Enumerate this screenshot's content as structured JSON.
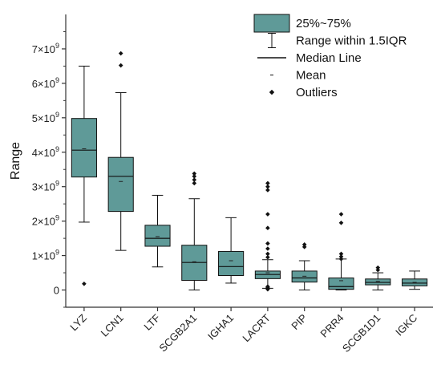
{
  "chart_data": {
    "type": "box",
    "title": "",
    "xlabel": "",
    "ylabel": "Range",
    "ylim": [
      -0.5,
      8.0
    ],
    "y_multiplier": "×10^9",
    "y_ticks": [
      {
        "value": 0,
        "label": "0"
      },
      {
        "value": 1,
        "label": "1×10",
        "exp": "9"
      },
      {
        "value": 2,
        "label": "2×10",
        "exp": "9"
      },
      {
        "value": 3,
        "label": "3×10",
        "exp": "9"
      },
      {
        "value": 4,
        "label": "4×10",
        "exp": "9"
      },
      {
        "value": 5,
        "label": "5×10",
        "exp": "9"
      },
      {
        "value": 6,
        "label": "6×10",
        "exp": "9"
      },
      {
        "value": 7,
        "label": "7×10",
        "exp": "9"
      }
    ],
    "box_color": "#5f9a98",
    "box_stroke": "#111111",
    "categories": [
      "LYZ",
      "LCN1",
      "LTF",
      "SCGB2A1",
      "IGHA1",
      "LACRT",
      "PIP",
      "PRR4",
      "SCGB1D1",
      "IGKC"
    ],
    "boxes": [
      {
        "name": "LYZ",
        "whisker_low": 1.97,
        "q1": 3.28,
        "median": 4.06,
        "mean": 4.1,
        "q3": 4.98,
        "whisker_high": 6.5,
        "outliers": [
          0.18
        ]
      },
      {
        "name": "LCN1",
        "whisker_low": 1.15,
        "q1": 2.28,
        "median": 3.3,
        "mean": 3.15,
        "q3": 3.85,
        "whisker_high": 5.73,
        "outliers": [
          6.52,
          6.87
        ]
      },
      {
        "name": "LTF",
        "whisker_low": 0.67,
        "q1": 1.27,
        "median": 1.5,
        "mean": 1.55,
        "q3": 1.88,
        "whisker_high": 2.75,
        "outliers": []
      },
      {
        "name": "SCGB2A1",
        "whisker_low": 0.0,
        "q1": 0.28,
        "median": 0.8,
        "mean": 0.82,
        "q3": 1.3,
        "whisker_high": 2.65,
        "outliers": [
          3.1,
          3.2,
          3.3,
          3.38
        ]
      },
      {
        "name": "IGHA1",
        "whisker_low": 0.2,
        "q1": 0.42,
        "median": 0.68,
        "mean": 0.85,
        "q3": 1.12,
        "whisker_high": 2.1,
        "outliers": []
      },
      {
        "name": "LACRT",
        "whisker_low": 0.05,
        "q1": 0.33,
        "median": 0.45,
        "mean": 0.5,
        "q3": 0.55,
        "whisker_high": 0.88,
        "outliers": [
          0.02,
          0.05,
          0.08,
          0.1,
          0.95,
          1.05,
          1.2,
          1.35,
          1.8,
          2.2,
          2.9,
          3.0,
          3.1
        ]
      },
      {
        "name": "PIP",
        "whisker_low": 0.0,
        "q1": 0.23,
        "median": 0.35,
        "mean": 0.4,
        "q3": 0.55,
        "whisker_high": 0.85,
        "outliers": [
          1.25,
          1.32
        ]
      },
      {
        "name": "PRR4",
        "whisker_low": 0.0,
        "q1": 0.02,
        "median": 0.1,
        "mean": 0.27,
        "q3": 0.35,
        "whisker_high": 0.9,
        "outliers": [
          0.9,
          0.97,
          1.05,
          1.95,
          2.2
        ]
      },
      {
        "name": "SCGB1D1",
        "whisker_low": 0.0,
        "q1": 0.15,
        "median": 0.22,
        "mean": 0.25,
        "q3": 0.32,
        "whisker_high": 0.5,
        "outliers": [
          0.58,
          0.65
        ]
      },
      {
        "name": "IGKC",
        "whisker_low": 0.02,
        "q1": 0.12,
        "median": 0.2,
        "mean": 0.22,
        "q3": 0.32,
        "whisker_high": 0.55,
        "outliers": []
      }
    ],
    "legend": {
      "placement": "top-right",
      "items": [
        {
          "kind": "box",
          "label": "25%~75%"
        },
        {
          "kind": "whisker",
          "label": "Range within 1.5IQR"
        },
        {
          "kind": "median",
          "label": "Median Line"
        },
        {
          "kind": "mean",
          "label": "Mean"
        },
        {
          "kind": "outlier",
          "label": "Outliers"
        }
      ]
    }
  }
}
